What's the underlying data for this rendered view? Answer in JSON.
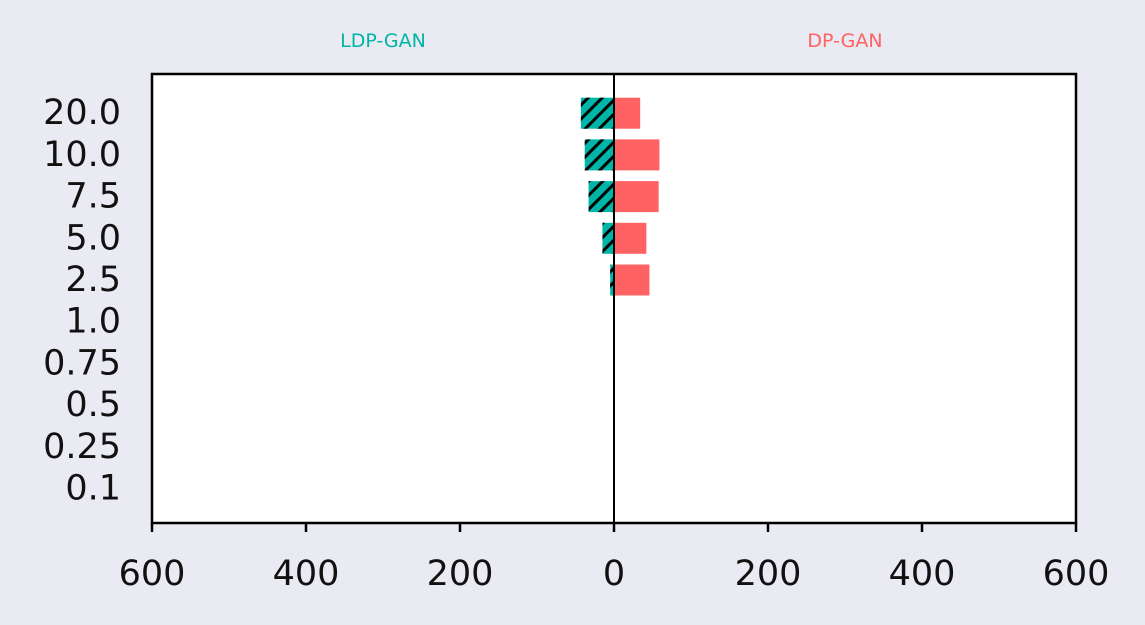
{
  "chart_data": {
    "type": "bar",
    "orientation": "horizontal-diverging",
    "categories": [
      "0.1",
      "0.25",
      "0.5",
      "0.75",
      "1.0",
      "2.5",
      "5.0",
      "7.5",
      "10.0",
      "20.0"
    ],
    "series": [
      {
        "name": "LDP-GAN",
        "side": "left",
        "color": "#00b5a8",
        "hatch": true,
        "values": [
          0,
          0,
          0,
          0,
          0,
          5,
          15,
          33,
          38,
          43
        ]
      },
      {
        "name": "DP-GAN",
        "side": "right",
        "color": "#ff6262",
        "hatch": false,
        "values": [
          0,
          0,
          0,
          0,
          0,
          46,
          42,
          58,
          59,
          34
        ]
      }
    ],
    "xlim": [
      -600,
      600
    ],
    "xticks": [
      -600,
      -400,
      -200,
      0,
      200,
      400,
      600
    ],
    "xtick_labels": [
      "600",
      "400",
      "200",
      "0",
      "200",
      "400",
      "600"
    ],
    "background": "#eaeaf2",
    "plot_background": "#ffffff",
    "grid": false
  }
}
